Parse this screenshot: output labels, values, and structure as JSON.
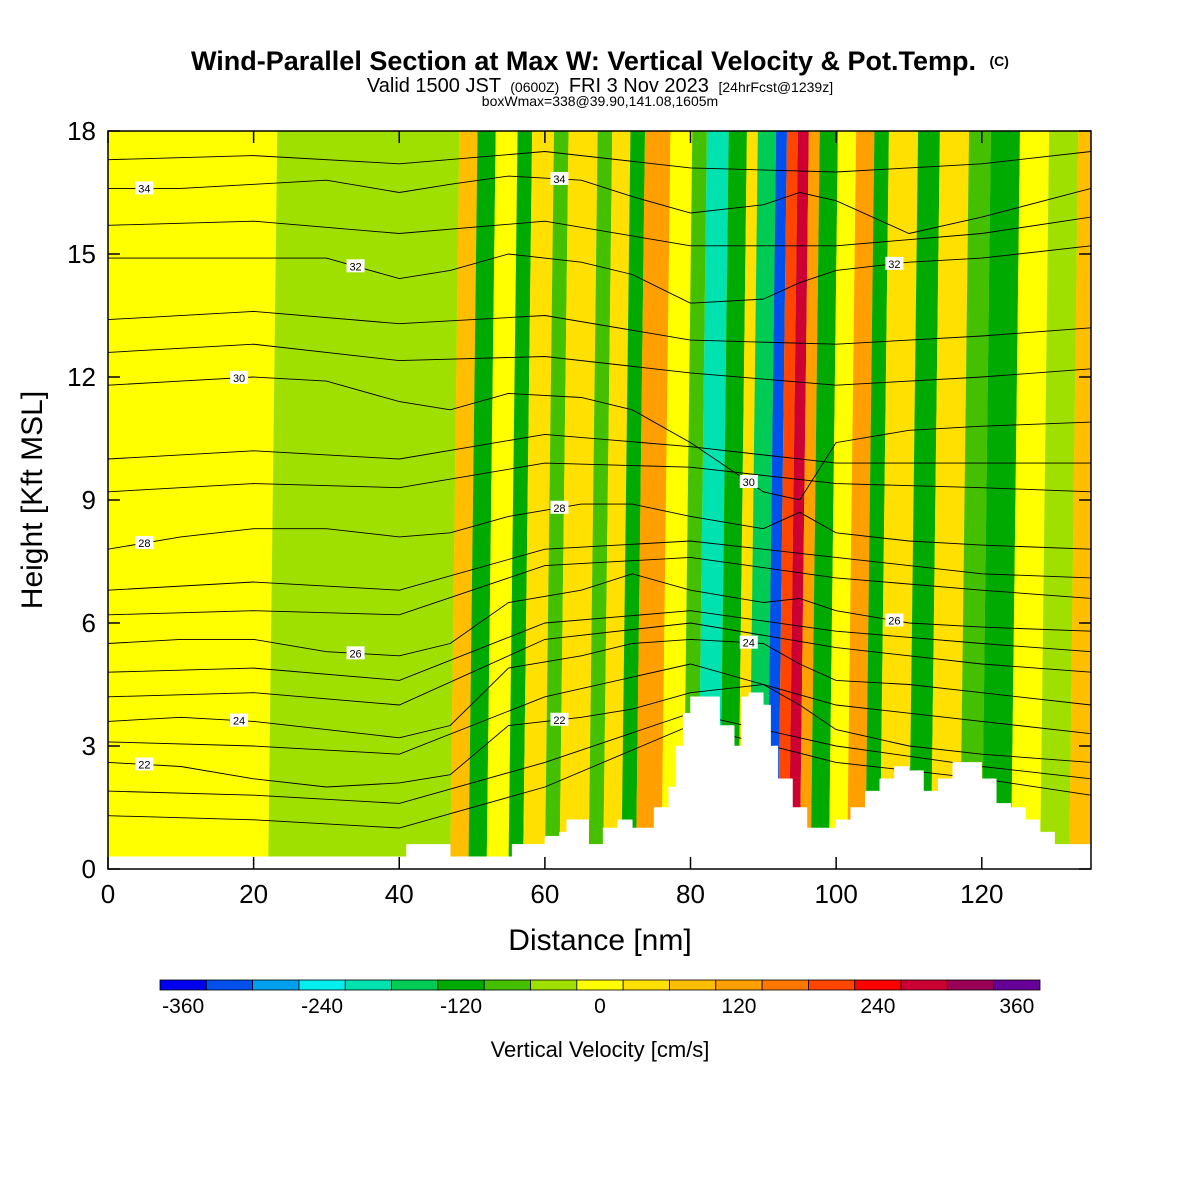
{
  "chart_data": {
    "type": "heatmap",
    "title": "Wind-Parallel Section at Max W: Vertical Velocity & Pot.Temp.",
    "title_mark": "(C)",
    "subtitle": {
      "valid_a": "Valid 1500 JST",
      "valid_b": "(0600Z)",
      "valid_c": "FRI 3 Nov 2023",
      "valid_d": "[24hrFcst@1239z]"
    },
    "subtitle2": "boxWmax=338@39.90,141.08,1605m",
    "xlabel": "Distance [nm]",
    "ylabel": "Height [Kft MSL]",
    "xlim": [
      0,
      135
    ],
    "ylim": [
      0,
      18
    ],
    "x_ticks": [
      0,
      20,
      40,
      60,
      80,
      100,
      120
    ],
    "y_ticks": [
      0,
      3,
      6,
      9,
      12,
      15,
      18
    ],
    "colorbar": {
      "label": "Vertical Velocity [cm/s]",
      "levels": [
        -360,
        -320,
        -280,
        -240,
        -200,
        -160,
        -120,
        -80,
        -40,
        0,
        40,
        80,
        120,
        160,
        200,
        240,
        280,
        320,
        360,
        400
      ],
      "tick_values": [
        -360,
        -240,
        -120,
        0,
        120,
        240,
        360
      ],
      "colors": [
        "#0000ee",
        "#0050ee",
        "#00a0ee",
        "#00eeee",
        "#00e3b1",
        "#00cc55",
        "#00aa00",
        "#44c000",
        "#a0e000",
        "#ffff00",
        "#ffe000",
        "#ffbf00",
        "#ff9f00",
        "#ff7700",
        "#ff4500",
        "#ff0000",
        "#cc0033",
        "#990055",
        "#660099"
      ]
    },
    "background_value": 0,
    "bands": [
      {
        "x0": 0,
        "x1": 22,
        "v": 0
      },
      {
        "x0": 22,
        "x1": 47,
        "v": -20
      },
      {
        "x0": 47,
        "x1": 49.5,
        "v": 80
      },
      {
        "x0": 49.5,
        "x1": 52,
        "v": -90
      },
      {
        "x0": 52,
        "x1": 55,
        "v": 30
      },
      {
        "x0": 55,
        "x1": 57,
        "v": -100
      },
      {
        "x0": 57,
        "x1": 60,
        "v": 50
      },
      {
        "x0": 60,
        "x1": 62,
        "v": -80
      },
      {
        "x0": 62,
        "x1": 66,
        "v": 60
      },
      {
        "x0": 66,
        "x1": 68,
        "v": -70
      },
      {
        "x0": 68,
        "x1": 70.5,
        "v": 40
      },
      {
        "x0": 70.5,
        "x1": 72.5,
        "v": -110
      },
      {
        "x0": 72.5,
        "x1": 76,
        "v": 130
      },
      {
        "x0": 76,
        "x1": 79,
        "v": 20
      },
      {
        "x0": 79,
        "x1": 81,
        "v": -80
      },
      {
        "x0": 81,
        "x1": 84,
        "v": -200
      },
      {
        "x0": 84,
        "x1": 86.5,
        "v": -100
      },
      {
        "x0": 86.5,
        "x1": 88,
        "v": 60
      },
      {
        "x0": 88,
        "x1": 90.5,
        "v": -140
      },
      {
        "x0": 90.5,
        "x1": 92,
        "v": -300
      },
      {
        "x0": 92,
        "x1": 93.5,
        "v": 210
      },
      {
        "x0": 93.5,
        "x1": 95,
        "v": 300
      },
      {
        "x0": 95,
        "x1": 96.5,
        "v": 140
      },
      {
        "x0": 96.5,
        "x1": 99,
        "v": -110
      },
      {
        "x0": 99,
        "x1": 101.5,
        "v": 20
      },
      {
        "x0": 101.5,
        "x1": 104,
        "v": 130
      },
      {
        "x0": 104,
        "x1": 106,
        "v": -90
      },
      {
        "x0": 106,
        "x1": 110,
        "v": 40
      },
      {
        "x0": 110,
        "x1": 113,
        "v": -100
      },
      {
        "x0": 113,
        "x1": 117,
        "v": 60
      },
      {
        "x0": 117,
        "x1": 120,
        "v": -70
      },
      {
        "x0": 120,
        "x1": 124,
        "v": -120
      },
      {
        "x0": 124,
        "x1": 128,
        "v": 20
      },
      {
        "x0": 128,
        "x1": 132,
        "v": -40
      },
      {
        "x0": 132,
        "x1": 135,
        "v": 90
      }
    ],
    "terrain": [
      [
        0,
        0.3
      ],
      [
        4,
        0.3
      ],
      [
        8,
        0.3
      ],
      [
        12,
        0.3
      ],
      [
        16,
        0.3
      ],
      [
        20,
        0.3
      ],
      [
        24,
        0.3
      ],
      [
        28,
        0.3
      ],
      [
        32,
        0.3
      ],
      [
        36,
        0.3
      ],
      [
        40,
        0.3
      ],
      [
        41,
        0.6
      ],
      [
        46,
        0.6
      ],
      [
        47,
        0.3
      ],
      [
        52,
        0.3
      ],
      [
        55,
        0.3
      ],
      [
        55.5,
        0.6
      ],
      [
        60,
        0.8
      ],
      [
        62,
        0.9
      ],
      [
        63,
        1.2
      ],
      [
        66,
        0.6
      ],
      [
        68,
        1.0
      ],
      [
        70,
        1.2
      ],
      [
        72,
        1.0
      ],
      [
        75,
        1.5
      ],
      [
        77,
        2.0
      ],
      [
        78,
        3.0
      ],
      [
        79,
        3.8
      ],
      [
        80,
        4.2
      ],
      [
        83,
        4.2
      ],
      [
        84,
        3.5
      ],
      [
        86,
        3.0
      ],
      [
        87,
        4.2
      ],
      [
        88,
        4.3
      ],
      [
        90,
        4.0
      ],
      [
        91,
        3.0
      ],
      [
        92,
        2.2
      ],
      [
        94,
        1.5
      ],
      [
        96,
        1.0
      ],
      [
        98,
        1.0
      ],
      [
        100,
        1.2
      ],
      [
        102,
        1.5
      ],
      [
        104,
        1.9
      ],
      [
        106,
        2.2
      ],
      [
        108,
        2.5
      ],
      [
        110,
        2.4
      ],
      [
        112,
        1.9
      ],
      [
        114,
        2.2
      ],
      [
        116,
        2.6
      ],
      [
        118,
        2.6
      ],
      [
        120,
        2.2
      ],
      [
        122,
        1.6
      ],
      [
        124,
        1.5
      ],
      [
        126,
        1.2
      ],
      [
        128,
        0.9
      ],
      [
        130,
        0.6
      ],
      [
        132,
        0.6
      ],
      [
        134,
        0.6
      ],
      [
        135,
        0.6
      ]
    ],
    "isentropes": [
      {
        "level": 22,
        "label": "22",
        "heights": [
          [
            0,
            2.6
          ],
          [
            10,
            2.5
          ],
          [
            20,
            2.2
          ],
          [
            30,
            2.0
          ],
          [
            40,
            2.1
          ],
          [
            47,
            2.3
          ],
          [
            55,
            3.5
          ],
          [
            65,
            3.7
          ],
          [
            72,
            3.9
          ],
          [
            80,
            4.3
          ],
          [
            90,
            4.5
          ],
          [
            95,
            4.0
          ],
          [
            100,
            3.4
          ],
          [
            110,
            3.0
          ],
          [
            120,
            2.8
          ],
          [
            135,
            2.6
          ]
        ]
      },
      {
        "level": 24,
        "label": "24",
        "heights": [
          [
            0,
            3.6
          ],
          [
            10,
            3.7
          ],
          [
            20,
            3.6
          ],
          [
            30,
            3.4
          ],
          [
            40,
            3.2
          ],
          [
            47,
            3.5
          ],
          [
            55,
            4.9
          ],
          [
            65,
            5.2
          ],
          [
            72,
            5.5
          ],
          [
            80,
            5.6
          ],
          [
            90,
            5.5
          ],
          [
            95,
            5.0
          ],
          [
            100,
            4.6
          ],
          [
            110,
            4.5
          ],
          [
            120,
            4.3
          ],
          [
            135,
            4.0
          ]
        ]
      },
      {
        "level": 26,
        "label": "26",
        "heights": [
          [
            0,
            5.5
          ],
          [
            10,
            5.6
          ],
          [
            20,
            5.6
          ],
          [
            30,
            5.3
          ],
          [
            40,
            5.2
          ],
          [
            47,
            5.5
          ],
          [
            55,
            6.5
          ],
          [
            65,
            6.8
          ],
          [
            72,
            7.2
          ],
          [
            80,
            6.8
          ],
          [
            90,
            6.5
          ],
          [
            95,
            6.6
          ],
          [
            100,
            6.3
          ],
          [
            110,
            6.0
          ],
          [
            120,
            5.9
          ],
          [
            135,
            5.8
          ]
        ]
      },
      {
        "level": 28,
        "label": "28",
        "heights": [
          [
            0,
            7.8
          ],
          [
            10,
            8.1
          ],
          [
            20,
            8.3
          ],
          [
            30,
            8.3
          ],
          [
            40,
            8.1
          ],
          [
            47,
            8.2
          ],
          [
            55,
            8.6
          ],
          [
            65,
            8.9
          ],
          [
            72,
            8.9
          ],
          [
            80,
            8.6
          ],
          [
            90,
            8.3
          ],
          [
            95,
            8.7
          ],
          [
            100,
            8.2
          ],
          [
            110,
            8.0
          ],
          [
            120,
            7.9
          ],
          [
            135,
            7.8
          ]
        ]
      },
      {
        "level": 30,
        "label": "30",
        "heights": [
          [
            0,
            11.8
          ],
          [
            10,
            11.9
          ],
          [
            20,
            12.0
          ],
          [
            30,
            11.9
          ],
          [
            40,
            11.4
          ],
          [
            47,
            11.2
          ],
          [
            55,
            11.6
          ],
          [
            65,
            11.5
          ],
          [
            72,
            11.2
          ],
          [
            80,
            10.4
          ],
          [
            90,
            9.2
          ],
          [
            95,
            9.0
          ],
          [
            100,
            10.4
          ],
          [
            110,
            10.7
          ],
          [
            120,
            10.8
          ],
          [
            135,
            10.9
          ]
        ]
      },
      {
        "level": 32,
        "label": "32",
        "heights": [
          [
            0,
            14.9
          ],
          [
            10,
            14.9
          ],
          [
            20,
            14.9
          ],
          [
            30,
            14.9
          ],
          [
            40,
            14.4
          ],
          [
            47,
            14.6
          ],
          [
            55,
            15.0
          ],
          [
            65,
            14.8
          ],
          [
            72,
            14.5
          ],
          [
            80,
            13.8
          ],
          [
            90,
            13.9
          ],
          [
            95,
            14.3
          ],
          [
            100,
            14.6
          ],
          [
            110,
            14.8
          ],
          [
            120,
            14.9
          ],
          [
            135,
            15.2
          ]
        ]
      },
      {
        "level": 34,
        "label": "34",
        "heights": [
          [
            0,
            16.6
          ],
          [
            10,
            16.6
          ],
          [
            20,
            16.7
          ],
          [
            30,
            16.8
          ],
          [
            40,
            16.5
          ],
          [
            47,
            16.7
          ],
          [
            55,
            16.9
          ],
          [
            65,
            16.8
          ],
          [
            72,
            16.4
          ],
          [
            80,
            16.0
          ],
          [
            90,
            16.2
          ],
          [
            95,
            16.5
          ],
          [
            100,
            16.3
          ],
          [
            110,
            15.5
          ],
          [
            120,
            15.9
          ],
          [
            135,
            16.6
          ]
        ]
      }
    ],
    "extra_isentropes": [
      [
        [
          0,
          1.3
        ],
        [
          20,
          1.2
        ],
        [
          40,
          1.0
        ],
        [
          60,
          2.0
        ],
        [
          80,
          3.5
        ],
        [
          100,
          2.6
        ],
        [
          120,
          2.2
        ],
        [
          135,
          1.8
        ]
      ],
      [
        [
          0,
          1.9
        ],
        [
          20,
          1.8
        ],
        [
          40,
          1.6
        ],
        [
          60,
          2.6
        ],
        [
          80,
          3.8
        ],
        [
          100,
          3.0
        ],
        [
          120,
          2.5
        ],
        [
          135,
          2.2
        ]
      ],
      [
        [
          0,
          3.1
        ],
        [
          20,
          3.0
        ],
        [
          40,
          2.8
        ],
        [
          60,
          4.2
        ],
        [
          80,
          5.0
        ],
        [
          100,
          4.0
        ],
        [
          120,
          3.6
        ],
        [
          135,
          3.3
        ]
      ],
      [
        [
          0,
          4.2
        ],
        [
          20,
          4.3
        ],
        [
          40,
          4.0
        ],
        [
          60,
          5.6
        ],
        [
          80,
          6.0
        ],
        [
          100,
          5.4
        ],
        [
          120,
          5.0
        ],
        [
          135,
          4.8
        ]
      ],
      [
        [
          0,
          4.8
        ],
        [
          20,
          4.9
        ],
        [
          40,
          4.6
        ],
        [
          60,
          6.0
        ],
        [
          80,
          6.3
        ],
        [
          100,
          5.8
        ],
        [
          120,
          5.5
        ],
        [
          135,
          5.3
        ]
      ],
      [
        [
          0,
          6.2
        ],
        [
          20,
          6.3
        ],
        [
          40,
          6.2
        ],
        [
          60,
          7.4
        ],
        [
          80,
          7.6
        ],
        [
          100,
          7.1
        ],
        [
          120,
          6.8
        ],
        [
          135,
          6.6
        ]
      ],
      [
        [
          0,
          6.8
        ],
        [
          20,
          7.0
        ],
        [
          40,
          6.8
        ],
        [
          60,
          7.8
        ],
        [
          80,
          8.0
        ],
        [
          100,
          7.6
        ],
        [
          120,
          7.2
        ],
        [
          135,
          7.1
        ]
      ],
      [
        [
          0,
          9.2
        ],
        [
          20,
          9.4
        ],
        [
          40,
          9.3
        ],
        [
          60,
          9.9
        ],
        [
          80,
          9.8
        ],
        [
          100,
          9.4
        ],
        [
          120,
          9.3
        ],
        [
          135,
          9.2
        ]
      ],
      [
        [
          0,
          10.0
        ],
        [
          20,
          10.2
        ],
        [
          40,
          10.0
        ],
        [
          60,
          10.6
        ],
        [
          80,
          10.3
        ],
        [
          100,
          9.9
        ],
        [
          120,
          9.9
        ],
        [
          135,
          9.9
        ]
      ],
      [
        [
          0,
          12.6
        ],
        [
          20,
          12.8
        ],
        [
          40,
          12.4
        ],
        [
          60,
          12.5
        ],
        [
          80,
          12.1
        ],
        [
          100,
          11.8
        ],
        [
          120,
          12.0
        ],
        [
          135,
          12.2
        ]
      ],
      [
        [
          0,
          13.4
        ],
        [
          20,
          13.6
        ],
        [
          40,
          13.3
        ],
        [
          60,
          13.5
        ],
        [
          80,
          12.9
        ],
        [
          100,
          12.8
        ],
        [
          120,
          13.0
        ],
        [
          135,
          13.2
        ]
      ],
      [
        [
          0,
          15.7
        ],
        [
          20,
          15.8
        ],
        [
          40,
          15.5
        ],
        [
          60,
          15.8
        ],
        [
          80,
          15.2
        ],
        [
          100,
          15.2
        ],
        [
          120,
          15.5
        ],
        [
          135,
          15.9
        ]
      ],
      [
        [
          0,
          17.3
        ],
        [
          20,
          17.4
        ],
        [
          40,
          17.2
        ],
        [
          60,
          17.5
        ],
        [
          80,
          17.1
        ],
        [
          100,
          17.0
        ],
        [
          120,
          17.2
        ],
        [
          135,
          17.5
        ]
      ]
    ]
  }
}
